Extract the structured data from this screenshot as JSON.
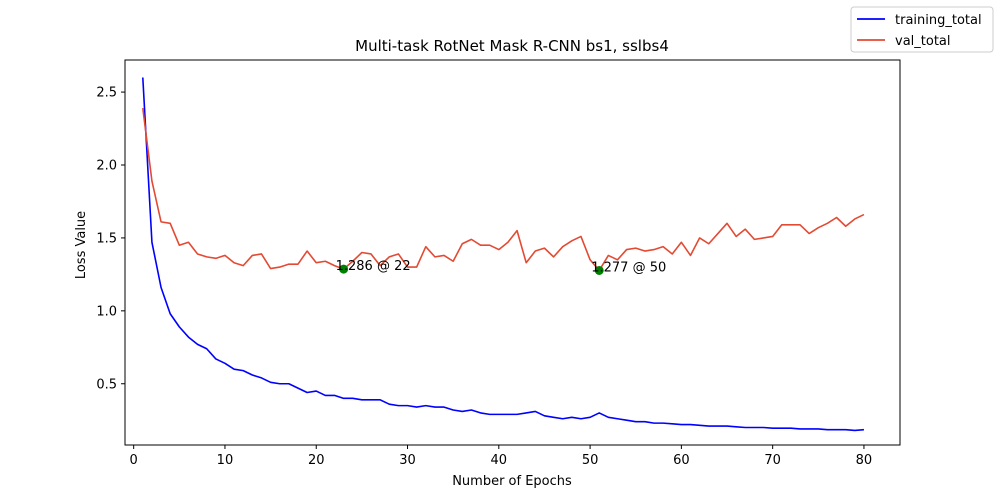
{
  "chart_data": {
    "type": "line",
    "title": "Multi-task RotNet Mask R-CNN bs1, sslbs4",
    "xlabel": "Number of Epochs",
    "ylabel": "Loss Value",
    "xlim": [
      -0.95,
      83.95
    ],
    "ylim": [
      0.08,
      2.72
    ],
    "xticks": [
      0,
      10,
      20,
      30,
      40,
      50,
      60,
      70,
      80
    ],
    "yticks": [
      0.5,
      1.0,
      1.5,
      2.0,
      2.5
    ],
    "xtick_labels": [
      "0",
      "10",
      "20",
      "30",
      "40",
      "50",
      "60",
      "70",
      "80"
    ],
    "ytick_labels": [
      "0.5",
      "1.0",
      "1.5",
      "2.0",
      "2.5"
    ],
    "grid": false,
    "legend_position": "top-right outside",
    "x": [
      1,
      2,
      3,
      4,
      5,
      6,
      7,
      8,
      9,
      10,
      11,
      12,
      13,
      14,
      15,
      16,
      17,
      18,
      19,
      20,
      21,
      22,
      23,
      24,
      25,
      26,
      27,
      28,
      29,
      30,
      31,
      32,
      33,
      34,
      35,
      36,
      37,
      38,
      39,
      40,
      41,
      42,
      43,
      44,
      45,
      46,
      47,
      48,
      49,
      50,
      51,
      52,
      53,
      54,
      55,
      56,
      57,
      58,
      59,
      60,
      61,
      62,
      63,
      64,
      65,
      66,
      67,
      68,
      69,
      70,
      71,
      72,
      73,
      74,
      75,
      76,
      77,
      78,
      79,
      80
    ],
    "series": [
      {
        "name": "training_total",
        "color": "#0000ff",
        "values": [
          2.6,
          1.47,
          1.16,
          0.98,
          0.89,
          0.82,
          0.77,
          0.74,
          0.67,
          0.64,
          0.6,
          0.59,
          0.56,
          0.54,
          0.51,
          0.5,
          0.5,
          0.47,
          0.44,
          0.45,
          0.42,
          0.42,
          0.4,
          0.4,
          0.39,
          0.39,
          0.39,
          0.36,
          0.35,
          0.35,
          0.34,
          0.35,
          0.34,
          0.34,
          0.32,
          0.31,
          0.32,
          0.3,
          0.29,
          0.29,
          0.29,
          0.29,
          0.3,
          0.31,
          0.28,
          0.27,
          0.26,
          0.27,
          0.26,
          0.27,
          0.3,
          0.27,
          0.26,
          0.25,
          0.24,
          0.24,
          0.23,
          0.23,
          0.225,
          0.22,
          0.22,
          0.215,
          0.21,
          0.21,
          0.21,
          0.205,
          0.2,
          0.2,
          0.2,
          0.195,
          0.195,
          0.195,
          0.19,
          0.19,
          0.19,
          0.185,
          0.185,
          0.185,
          0.18,
          0.185
        ]
      },
      {
        "name": "val_total",
        "color": "#e34a33",
        "values": [
          2.39,
          1.89,
          1.61,
          1.6,
          1.45,
          1.47,
          1.39,
          1.37,
          1.36,
          1.38,
          1.33,
          1.31,
          1.38,
          1.39,
          1.29,
          1.3,
          1.32,
          1.32,
          1.41,
          1.33,
          1.34,
          1.31,
          1.286,
          1.34,
          1.4,
          1.39,
          1.31,
          1.37,
          1.39,
          1.3,
          1.3,
          1.44,
          1.37,
          1.38,
          1.34,
          1.46,
          1.49,
          1.45,
          1.45,
          1.42,
          1.47,
          1.55,
          1.33,
          1.41,
          1.43,
          1.37,
          1.44,
          1.48,
          1.51,
          1.35,
          1.277,
          1.38,
          1.35,
          1.42,
          1.43,
          1.41,
          1.42,
          1.44,
          1.39,
          1.47,
          1.38,
          1.5,
          1.46,
          1.53,
          1.6,
          1.51,
          1.56,
          1.49,
          1.5,
          1.51,
          1.59,
          1.59,
          1.59,
          1.53,
          1.57,
          1.6,
          1.64,
          1.58,
          1.63,
          1.66
        ]
      }
    ],
    "markers": [
      {
        "x": 23,
        "y": 1.286,
        "color": "#008000",
        "label": "1.286 @ 22"
      },
      {
        "x": 51,
        "y": 1.277,
        "color": "#008000",
        "label": "1.277 @ 50"
      }
    ]
  }
}
